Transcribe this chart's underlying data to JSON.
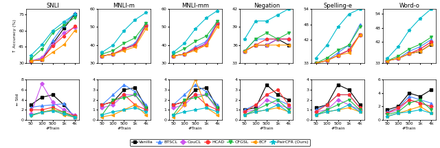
{
  "datasets": [
    "SNLI",
    "MNLI-m",
    "MNLI-mm",
    "Negation",
    "Spelling-e",
    "Word-o"
  ],
  "x_ticks": [
    "50",
    "100",
    "500",
    "1k",
    "4k"
  ],
  "x_vals": [
    0,
    1,
    2,
    3,
    4
  ],
  "methods": [
    "Vanilla",
    "BTSCL",
    "CouCL",
    "HCAD",
    "CFGSL",
    "ECF",
    "PairCFR (Ours)"
  ],
  "colors": [
    "black",
    "#4488FF",
    "#CC55EE",
    "#FF3333",
    "#22BB44",
    "#FF9900",
    "#00BBCC"
  ],
  "markers": [
    "s",
    "^",
    "D",
    "o",
    "v",
    "<",
    "*"
  ],
  "acc": {
    "SNLI": {
      "Vanilla": [
        32,
        33,
        48,
        62,
        75
      ],
      "BTSCL": [
        32,
        34,
        51,
        65,
        76
      ],
      "CouCL": [
        32,
        35,
        47,
        58,
        63
      ],
      "HCAD": [
        32,
        33,
        46,
        55,
        64
      ],
      "CFGSL": [
        34,
        43,
        58,
        65,
        72
      ],
      "ECF": [
        32,
        33,
        40,
        47,
        60
      ],
      "PairCFR (Ours)": [
        37,
        47,
        60,
        68,
        75
      ]
    },
    "MNLI-m": {
      "Vanilla": [
        34,
        35,
        38,
        40,
        51
      ],
      "BTSCL": [
        34,
        35,
        38,
        41,
        52
      ],
      "CouCL": [
        34,
        35,
        38,
        40,
        51
      ],
      "HCAD": [
        34,
        35,
        38,
        40,
        51
      ],
      "CFGSL": [
        35,
        37,
        41,
        44,
        52
      ],
      "ECF": [
        34,
        35,
        37,
        39,
        49
      ],
      "PairCFR (Ours)": [
        36,
        40,
        48,
        54,
        58
      ]
    },
    "MNLI-mm": {
      "Vanilla": [
        34,
        35,
        38,
        41,
        52
      ],
      "BTSCL": [
        34,
        35,
        39,
        42,
        53
      ],
      "CouCL": [
        34,
        35,
        38,
        41,
        52
      ],
      "HCAD": [
        34,
        35,
        38,
        40,
        52
      ],
      "CFGSL": [
        35,
        38,
        42,
        45,
        53
      ],
      "ECF": [
        34,
        35,
        37,
        40,
        50
      ],
      "PairCFR (Ours)": [
        36,
        41,
        49,
        55,
        59
      ]
    },
    "Negation": {
      "Vanilla": [
        35,
        36,
        36,
        37,
        36
      ],
      "BTSCL": [
        35,
        37,
        37,
        37,
        37
      ],
      "CouCL": [
        35,
        36,
        36,
        37,
        37
      ],
      "HCAD": [
        35,
        36,
        37,
        37,
        37
      ],
      "CFGSL": [
        35,
        37,
        38,
        37,
        38
      ],
      "ECF": [
        35,
        36,
        36,
        36,
        36
      ],
      "PairCFR (Ours)": [
        37,
        40,
        40,
        41,
        42
      ]
    },
    "Spelling-e": {
      "Vanilla": [
        33,
        34,
        36,
        38,
        44
      ],
      "BTSCL": [
        33,
        34,
        37,
        40,
        48
      ],
      "CouCL": [
        33,
        34,
        36,
        38,
        44
      ],
      "HCAD": [
        33,
        34,
        36,
        38,
        44
      ],
      "CFGSL": [
        33,
        35,
        38,
        40,
        47
      ],
      "ECF": [
        33,
        34,
        36,
        37,
        44
      ],
      "PairCFR (Ours)": [
        35,
        40,
        47,
        52,
        54
      ]
    },
    "Word-o": {
      "Vanilla": [
        34,
        35,
        37,
        38,
        41
      ],
      "BTSCL": [
        34,
        35,
        38,
        40,
        43
      ],
      "CouCL": [
        34,
        35,
        37,
        39,
        42
      ],
      "HCAD": [
        34,
        35,
        37,
        39,
        42
      ],
      "CFGSL": [
        34,
        36,
        39,
        41,
        44
      ],
      "ECF": [
        34,
        35,
        37,
        38,
        41
      ],
      "PairCFR (Ours)": [
        35,
        40,
        47,
        52,
        56
      ]
    }
  },
  "std": {
    "SNLI": {
      "Vanilla": [
        3.0,
        4.5,
        5.0,
        3.0,
        0.5
      ],
      "BTSCL": [
        2.5,
        2.8,
        3.0,
        3.2,
        0.5
      ],
      "CouCL": [
        1.2,
        7.2,
        3.5,
        2.0,
        1.0
      ],
      "HCAD": [
        2.0,
        2.0,
        2.5,
        1.5,
        0.8
      ],
      "CFGSL": [
        0.8,
        1.5,
        2.0,
        1.5,
        0.5
      ],
      "ECF": [
        1.0,
        1.5,
        2.0,
        1.0,
        0.5
      ],
      "PairCFR (Ours)": [
        1.0,
        1.5,
        1.8,
        1.2,
        0.5
      ]
    },
    "MNLI-m": {
      "Vanilla": [
        1.5,
        1.8,
        3.0,
        3.2,
        1.2
      ],
      "BTSCL": [
        1.5,
        2.5,
        3.5,
        2.8,
        1.5
      ],
      "CouCL": [
        1.2,
        1.5,
        2.5,
        2.5,
        1.0
      ],
      "HCAD": [
        1.5,
        1.8,
        2.5,
        1.5,
        1.0
      ],
      "CFGSL": [
        0.5,
        2.0,
        2.2,
        2.5,
        1.2
      ],
      "ECF": [
        0.3,
        0.5,
        1.0,
        1.5,
        0.5
      ],
      "PairCFR (Ours)": [
        0.5,
        0.8,
        1.0,
        1.2,
        0.8
      ]
    },
    "MNLI-mm": {
      "Vanilla": [
        1.5,
        1.8,
        3.0,
        3.2,
        1.2
      ],
      "BTSCL": [
        1.5,
        2.5,
        3.5,
        2.8,
        1.5
      ],
      "CouCL": [
        1.2,
        1.5,
        2.5,
        2.5,
        1.0
      ],
      "HCAD": [
        1.5,
        1.8,
        2.5,
        1.5,
        1.0
      ],
      "CFGSL": [
        0.5,
        2.0,
        2.2,
        2.5,
        1.2
      ],
      "ECF": [
        0.3,
        1.5,
        4.0,
        1.2,
        0.5
      ],
      "PairCFR (Ours)": [
        0.5,
        0.8,
        1.0,
        1.2,
        0.8
      ]
    },
    "Negation": {
      "Vanilla": [
        1.0,
        1.2,
        3.5,
        2.5,
        2.0
      ],
      "BTSCL": [
        1.0,
        1.5,
        2.5,
        2.0,
        1.5
      ],
      "CouCL": [
        0.8,
        1.0,
        2.0,
        1.5,
        1.2
      ],
      "HCAD": [
        0.8,
        1.5,
        2.5,
        3.0,
        1.5
      ],
      "CFGSL": [
        0.5,
        1.0,
        1.5,
        2.0,
        1.0
      ],
      "ECF": [
        0.5,
        0.8,
        1.0,
        1.2,
        0.8
      ],
      "PairCFR (Ours)": [
        0.5,
        0.8,
        1.0,
        1.5,
        0.8
      ]
    },
    "Spelling-e": {
      "Vanilla": [
        1.2,
        1.5,
        3.5,
        3.0,
        1.5
      ],
      "BTSCL": [
        1.0,
        1.5,
        2.5,
        2.5,
        1.2
      ],
      "CouCL": [
        0.8,
        1.0,
        2.0,
        1.5,
        1.0
      ],
      "HCAD": [
        0.8,
        1.5,
        2.5,
        2.5,
        1.2
      ],
      "CFGSL": [
        0.5,
        1.0,
        1.5,
        2.0,
        1.0
      ],
      "ECF": [
        0.5,
        0.8,
        1.0,
        1.2,
        0.8
      ],
      "PairCFR (Ours)": [
        0.5,
        0.8,
        1.0,
        1.5,
        0.8
      ]
    },
    "Word-o": {
      "Vanilla": [
        1.5,
        2.0,
        4.0,
        3.5,
        4.5
      ],
      "BTSCL": [
        1.2,
        1.8,
        3.5,
        3.0,
        2.5
      ],
      "CouCL": [
        1.0,
        1.5,
        3.0,
        2.5,
        2.0
      ],
      "HCAD": [
        1.0,
        1.8,
        3.0,
        2.5,
        2.0
      ],
      "CFGSL": [
        0.8,
        1.2,
        2.5,
        3.0,
        1.5
      ],
      "ECF": [
        0.5,
        1.0,
        1.5,
        2.0,
        1.0
      ],
      "PairCFR (Ours)": [
        0.5,
        1.0,
        1.2,
        1.5,
        1.0
      ]
    }
  },
  "acc_ylims": {
    "SNLI": [
      30,
      80
    ],
    "MNLI-m": [
      30,
      60
    ],
    "MNLI-mm": [
      30,
      60
    ],
    "Negation": [
      33,
      42
    ],
    "Spelling-e": [
      33,
      54
    ],
    "Word-o": [
      33,
      56
    ]
  },
  "std_ylims": {
    "SNLI": [
      0,
      8
    ],
    "MNLI-m": [
      0,
      4
    ],
    "MNLI-mm": [
      0,
      4
    ],
    "Negation": [
      0,
      4
    ],
    "Spelling-e": [
      0,
      4
    ],
    "Word-o": [
      0,
      6
    ]
  },
  "acc_yticks": {
    "SNLI": [
      30,
      45,
      60,
      75
    ],
    "MNLI-m": [
      30,
      40,
      50,
      60
    ],
    "MNLI-mm": [
      30,
      40,
      50,
      60
    ],
    "Negation": [
      33,
      36,
      39,
      42
    ],
    "Spelling-e": [
      33,
      42,
      48,
      54
    ],
    "Word-o": [
      33,
      42,
      48,
      54
    ]
  },
  "std_yticks": {
    "SNLI": [
      0,
      2,
      4,
      6,
      8
    ],
    "MNLI-m": [
      0,
      1,
      2,
      3,
      4
    ],
    "MNLI-mm": [
      0,
      1,
      2,
      3,
      4
    ],
    "Negation": [
      0,
      1,
      2,
      3,
      4
    ],
    "Spelling-e": [
      0,
      1,
      2,
      3,
      4
    ],
    "Word-o": [
      0,
      2,
      4,
      6
    ]
  }
}
